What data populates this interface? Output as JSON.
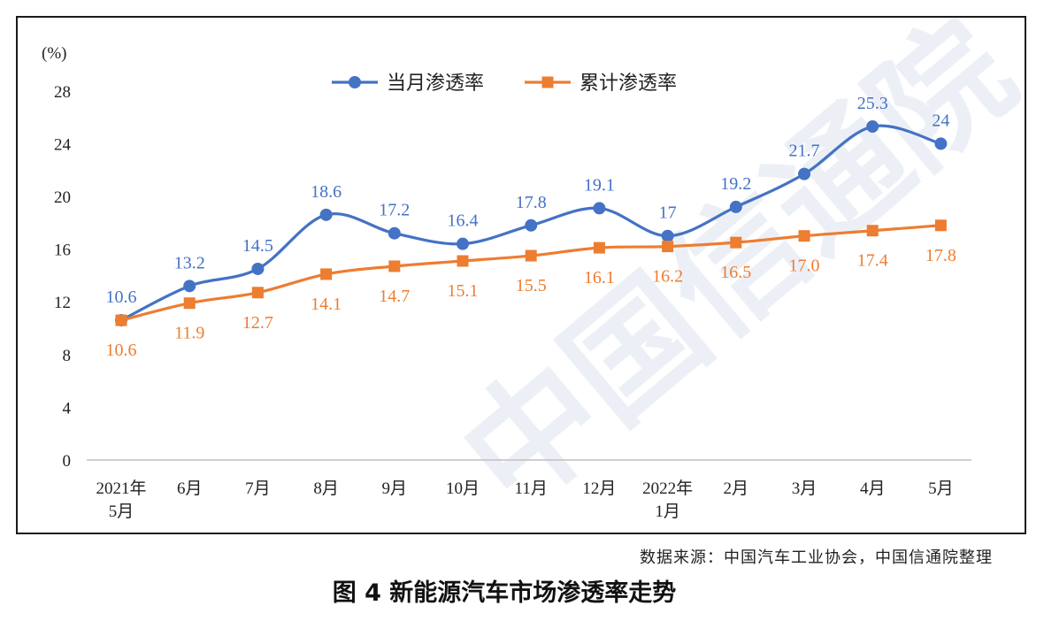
{
  "caption": "图 4  新能源汽车市场渗透率走势",
  "source": "数据来源：中国汽车工业协会，中国信通院整理",
  "watermark": "中国信通院",
  "chart_data": {
    "type": "line",
    "ylabel": "(%)",
    "ylim": [
      0,
      28
    ],
    "yticks": [
      0,
      4,
      8,
      12,
      16,
      20,
      24,
      28
    ],
    "categories": [
      [
        "2021年",
        "5月"
      ],
      [
        "6月"
      ],
      [
        "7月"
      ],
      [
        "8月"
      ],
      [
        "9月"
      ],
      [
        "10月"
      ],
      [
        "11月"
      ],
      [
        "12月"
      ],
      [
        "2022年",
        "1月"
      ],
      [
        "2月"
      ],
      [
        "3月"
      ],
      [
        "4月"
      ],
      [
        "5月"
      ]
    ],
    "legend_position": "top-center",
    "series": [
      {
        "name": "当月渗透率",
        "color": "#4472C4",
        "marker": "circle",
        "values": [
          10.6,
          13.2,
          14.5,
          18.6,
          17.2,
          16.4,
          17.8,
          19.1,
          17,
          19.2,
          21.7,
          25.3,
          24
        ],
        "labels": [
          "10.6",
          "13.2",
          "14.5",
          "18.6",
          "17.2",
          "16.4",
          "17.8",
          "19.1",
          "17",
          "19.2",
          "21.7",
          "25.3",
          "24"
        ]
      },
      {
        "name": "累计渗透率",
        "color": "#ED7D31",
        "marker": "square",
        "values": [
          10.6,
          11.9,
          12.7,
          14.1,
          14.7,
          15.1,
          15.5,
          16.1,
          16.2,
          16.5,
          17.0,
          17.4,
          17.8
        ],
        "labels": [
          "10.6",
          "11.9",
          "12.7",
          "14.1",
          "14.7",
          "15.1",
          "15.5",
          "16.1",
          "16.2",
          "16.5",
          "17.0",
          "17.4",
          "17.8"
        ]
      }
    ]
  }
}
